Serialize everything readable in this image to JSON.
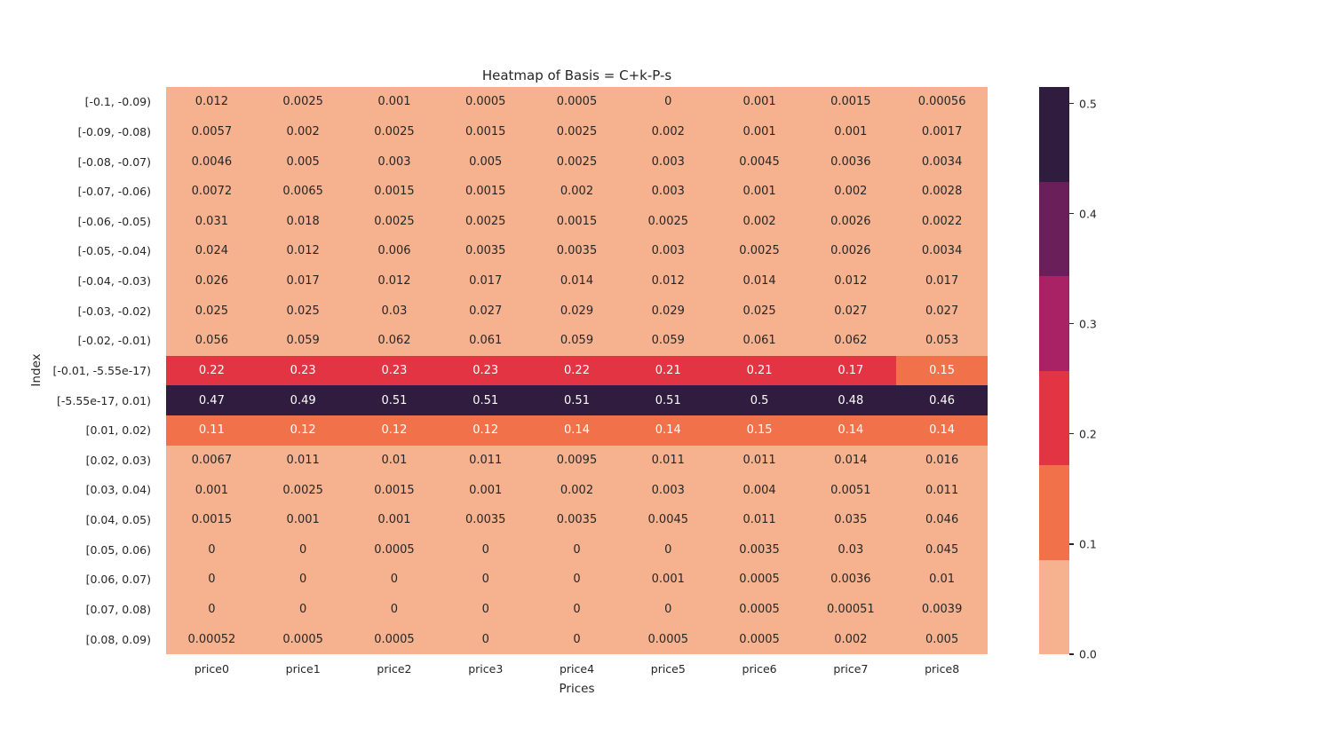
{
  "figure": {
    "background": "#ffffff",
    "text_color": "#262626"
  },
  "chart_data": {
    "type": "heatmap",
    "title": "Heatmap of Basis = C+k-P-s",
    "xlabel": "Prices",
    "ylabel": "Index",
    "columns": [
      "price0",
      "price1",
      "price2",
      "price3",
      "price4",
      "price5",
      "price6",
      "price7",
      "price8"
    ],
    "rows": [
      "[-0.1, -0.09)",
      "[-0.09, -0.08)",
      "[-0.08, -0.07)",
      "[-0.07, -0.06)",
      "[-0.06, -0.05)",
      "[-0.05, -0.04)",
      "[-0.04, -0.03)",
      "[-0.03, -0.02)",
      "[-0.02, -0.01)",
      "[-0.01, -5.55e-17)",
      "[-5.55e-17, 0.01)",
      "[0.01, 0.02)",
      "[0.02, 0.03)",
      "[0.03, 0.04)",
      "[0.04, 0.05)",
      "[0.05, 0.06)",
      "[0.06, 0.07)",
      "[0.07, 0.08)",
      "[0.08, 0.09)"
    ],
    "values": [
      [
        "0.012",
        "0.0025",
        "0.001",
        "0.0005",
        "0.0005",
        "0",
        "0.001",
        "0.0015",
        "0.00056"
      ],
      [
        "0.0057",
        "0.002",
        "0.0025",
        "0.0015",
        "0.0025",
        "0.002",
        "0.001",
        "0.001",
        "0.0017"
      ],
      [
        "0.0046",
        "0.005",
        "0.003",
        "0.005",
        "0.0025",
        "0.003",
        "0.0045",
        "0.0036",
        "0.0034"
      ],
      [
        "0.0072",
        "0.0065",
        "0.0015",
        "0.0015",
        "0.002",
        "0.003",
        "0.001",
        "0.002",
        "0.0028"
      ],
      [
        "0.031",
        "0.018",
        "0.0025",
        "0.0025",
        "0.0015",
        "0.0025",
        "0.002",
        "0.0026",
        "0.0022"
      ],
      [
        "0.024",
        "0.012",
        "0.006",
        "0.0035",
        "0.0035",
        "0.003",
        "0.0025",
        "0.0026",
        "0.0034"
      ],
      [
        "0.026",
        "0.017",
        "0.012",
        "0.017",
        "0.014",
        "0.012",
        "0.014",
        "0.012",
        "0.017"
      ],
      [
        "0.025",
        "0.025",
        "0.03",
        "0.027",
        "0.029",
        "0.029",
        "0.025",
        "0.027",
        "0.027"
      ],
      [
        "0.056",
        "0.059",
        "0.062",
        "0.061",
        "0.059",
        "0.059",
        "0.061",
        "0.062",
        "0.053"
      ],
      [
        "0.22",
        "0.23",
        "0.23",
        "0.23",
        "0.22",
        "0.21",
        "0.21",
        "0.17",
        "0.15"
      ],
      [
        "0.47",
        "0.49",
        "0.51",
        "0.51",
        "0.51",
        "0.51",
        "0.5",
        "0.48",
        "0.46"
      ],
      [
        "0.11",
        "0.12",
        "0.12",
        "0.12",
        "0.14",
        "0.14",
        "0.15",
        "0.14",
        "0.14"
      ],
      [
        "0.0067",
        "0.011",
        "0.01",
        "0.011",
        "0.0095",
        "0.011",
        "0.011",
        "0.014",
        "0.016"
      ],
      [
        "0.001",
        "0.0025",
        "0.0015",
        "0.001",
        "0.002",
        "0.003",
        "0.004",
        "0.0051",
        "0.011"
      ],
      [
        "0.0015",
        "0.001",
        "0.001",
        "0.0035",
        "0.0035",
        "0.0045",
        "0.011",
        "0.035",
        "0.046"
      ],
      [
        "0",
        "0",
        "0.0005",
        "0",
        "0",
        "0",
        "0.0035",
        "0.03",
        "0.045"
      ],
      [
        "0",
        "0",
        "0",
        "0",
        "0",
        "0.001",
        "0.0005",
        "0.0036",
        "0.01"
      ],
      [
        "0",
        "0",
        "0",
        "0",
        "0",
        "0",
        "0.0005",
        "0.00051",
        "0.0039"
      ],
      [
        "0.00052",
        "0.0005",
        "0.0005",
        "0",
        "0",
        "0.0005",
        "0.0005",
        "0.002",
        "0.005"
      ]
    ],
    "color_scale": {
      "band_size": 0.085,
      "colors": [
        "#f6b28f",
        "#f0714a",
        "#e23442",
        "#aa2266",
        "#6a1f5a",
        "#2f1c3e"
      ],
      "annot_dark_text": "#262626",
      "annot_light_text": "#ffffff"
    },
    "colorbar": {
      "vmin": 0,
      "vmax": 0.515,
      "ticks": [
        "0.0",
        "0.1",
        "0.2",
        "0.3",
        "0.4",
        "0.5"
      ]
    },
    "grid": false,
    "legend": "colorbar-right"
  }
}
